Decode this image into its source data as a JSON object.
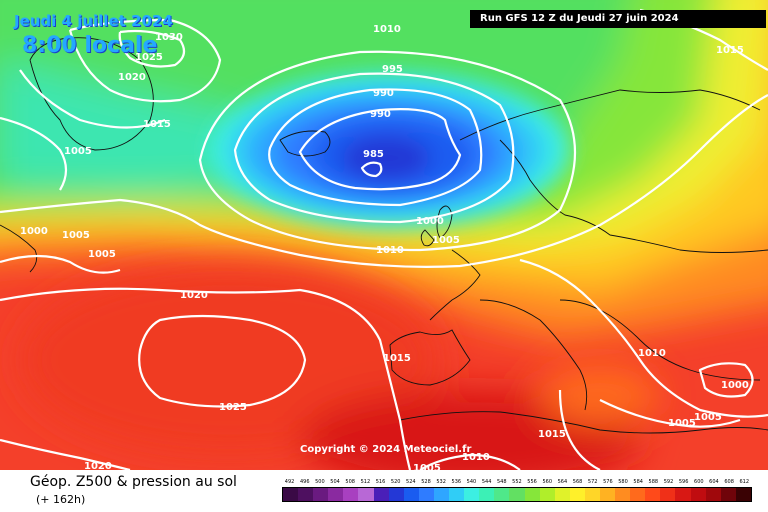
{
  "header": {
    "date": "Jeudi 4 juillet 2024",
    "time": "8:00 locale",
    "run": "Run GFS 12 Z du Jeudi 27 juin 2024"
  },
  "copyright": "Copyright © 2024 Meteociel.fr",
  "footer": {
    "title": "Géop. Z500 & pression au sol",
    "lead": "(+ 162h)"
  },
  "map": {
    "isobar_labels": [
      "1010",
      "1030",
      "1025",
      "1020",
      "1015",
      "1005",
      "1000",
      "995",
      "990",
      "985"
    ],
    "low_center_hpa": 985
  },
  "legend": {
    "values": [
      "492",
      "496",
      "500",
      "504",
      "508",
      "512",
      "516",
      "520",
      "524",
      "528",
      "532",
      "536",
      "540",
      "544",
      "548",
      "552",
      "556",
      "560",
      "564",
      "568",
      "572",
      "576",
      "580",
      "584",
      "588",
      "592",
      "596",
      "600",
      "604",
      "608",
      "612"
    ],
    "colors": [
      "#3a0a46",
      "#4e1060",
      "#6a1a80",
      "#8a2aa0",
      "#a840c0",
      "#b868d6",
      "#4a1fb8",
      "#2438d6",
      "#1a5cf0",
      "#2f7cff",
      "#2fa6ff",
      "#30cdf6",
      "#3cefe2",
      "#3cf0b6",
      "#4fe88a",
      "#62e062",
      "#86e63a",
      "#b0ee2a",
      "#e0f22a",
      "#fff02a",
      "#ffd628",
      "#ffb222",
      "#ff8c20",
      "#ff6a1c",
      "#ff4a1a",
      "#f03018",
      "#d81814",
      "#c00c10",
      "#a0080c",
      "#70040a",
      "#3a0204"
    ],
    "background": "#ffffff"
  }
}
